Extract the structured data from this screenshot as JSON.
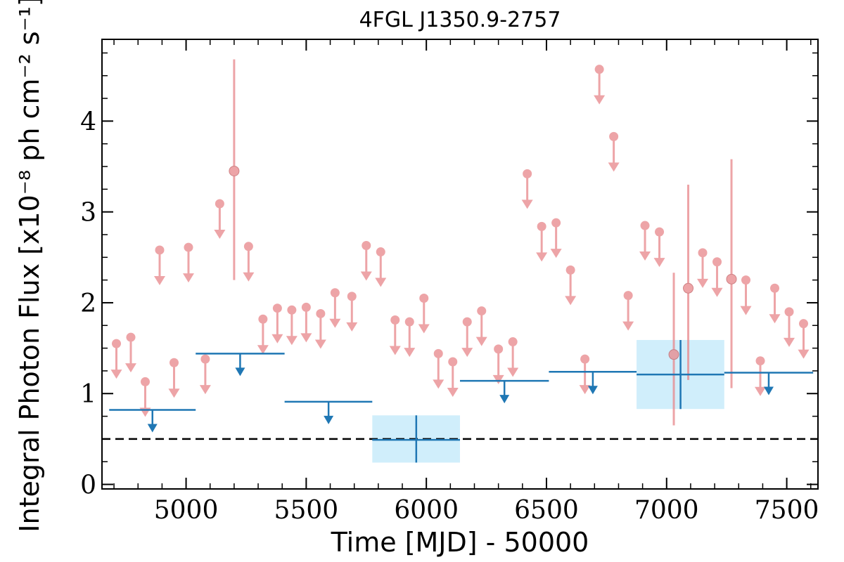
{
  "chart_data": {
    "type": "scatter",
    "title": "4FGL J1350.9-2757",
    "xlabel": "Time [MJD] - 50000",
    "ylabel": "Integral Photon Flux [x10⁻⁸ ph cm⁻² s⁻¹]",
    "xlim": [
      4650,
      7630
    ],
    "ylim": [
      -0.05,
      4.9
    ],
    "x_ticks": [
      "5000",
      "5500",
      "6000",
      "6500",
      "7000",
      "7500"
    ],
    "y_ticks": [
      "0",
      "1",
      "2",
      "3",
      "4"
    ],
    "grid": false,
    "reference_line": {
      "y": 0.5,
      "style": "dashed",
      "color": "#000000"
    },
    "short_bins": {
      "color": "#e8868a",
      "upper_limits": [
        {
          "x": 4710,
          "y": 1.55
        },
        {
          "x": 4770,
          "y": 1.62
        },
        {
          "x": 4830,
          "y": 1.13
        },
        {
          "x": 4890,
          "y": 2.58
        },
        {
          "x": 4950,
          "y": 1.34
        },
        {
          "x": 5010,
          "y": 2.61
        },
        {
          "x": 5080,
          "y": 1.38
        },
        {
          "x": 5140,
          "y": 3.09
        },
        {
          "x": 5260,
          "y": 2.62
        },
        {
          "x": 5320,
          "y": 1.82
        },
        {
          "x": 5380,
          "y": 1.94
        },
        {
          "x": 5440,
          "y": 1.92
        },
        {
          "x": 5500,
          "y": 1.95
        },
        {
          "x": 5560,
          "y": 1.88
        },
        {
          "x": 5620,
          "y": 2.11
        },
        {
          "x": 5690,
          "y": 2.07
        },
        {
          "x": 5750,
          "y": 2.63
        },
        {
          "x": 5810,
          "y": 2.56
        },
        {
          "x": 5870,
          "y": 1.81
        },
        {
          "x": 5930,
          "y": 1.79
        },
        {
          "x": 5990,
          "y": 2.05
        },
        {
          "x": 6050,
          "y": 1.44
        },
        {
          "x": 6110,
          "y": 1.35
        },
        {
          "x": 6170,
          "y": 1.79
        },
        {
          "x": 6230,
          "y": 1.91
        },
        {
          "x": 6300,
          "y": 1.49
        },
        {
          "x": 6360,
          "y": 1.57
        },
        {
          "x": 6420,
          "y": 3.42
        },
        {
          "x": 6480,
          "y": 2.84
        },
        {
          "x": 6540,
          "y": 2.88
        },
        {
          "x": 6600,
          "y": 2.36
        },
        {
          "x": 6660,
          "y": 1.38
        },
        {
          "x": 6720,
          "y": 4.57
        },
        {
          "x": 6780,
          "y": 3.83
        },
        {
          "x": 6840,
          "y": 2.08
        },
        {
          "x": 6910,
          "y": 2.85
        },
        {
          "x": 6970,
          "y": 2.78
        },
        {
          "x": 7150,
          "y": 2.55
        },
        {
          "x": 7210,
          "y": 2.45
        },
        {
          "x": 7330,
          "y": 2.25
        },
        {
          "x": 7390,
          "y": 1.36
        },
        {
          "x": 7450,
          "y": 2.16
        },
        {
          "x": 7510,
          "y": 1.9
        },
        {
          "x": 7570,
          "y": 1.77
        }
      ],
      "detections": [
        {
          "x": 5200,
          "y": 3.45,
          "yerr_low": 1.2,
          "yerr_high": 1.23
        },
        {
          "x": 7030,
          "y": 1.43,
          "yerr_low": 0.78,
          "yerr_high": 0.9
        },
        {
          "x": 7090,
          "y": 2.16,
          "yerr_low": 1.01,
          "yerr_high": 1.14
        },
        {
          "x": 7270,
          "y": 2.26,
          "yerr_low": 1.2,
          "yerr_high": 1.32
        }
      ]
    },
    "long_bins": {
      "color": "#1f77b4",
      "box_color": "#d0eefb",
      "upper_limits": [
        {
          "x0": 4680,
          "x1": 5040,
          "y": 0.82,
          "xmark": 4860
        },
        {
          "x0": 5040,
          "x1": 5410,
          "y": 1.44,
          "xmark": 5225
        },
        {
          "x0": 5410,
          "x1": 5775,
          "y": 0.91,
          "xmark": 5593
        },
        {
          "x0": 6140,
          "x1": 6510,
          "y": 1.14,
          "xmark": 6325
        },
        {
          "x0": 6510,
          "x1": 6875,
          "y": 1.24,
          "xmark": 6693
        },
        {
          "x0": 7240,
          "x1": 7610,
          "y": 1.23,
          "xmark": 7425
        }
      ],
      "detections": [
        {
          "x0": 5775,
          "x1": 6140,
          "xc": 5958,
          "y": 0.49,
          "yerr_low": 0.25,
          "yerr_high": 0.27
        },
        {
          "x0": 6875,
          "x1": 7240,
          "xc": 7058,
          "y": 1.21,
          "yerr_low": 0.38,
          "yerr_high": 0.38
        }
      ]
    }
  }
}
